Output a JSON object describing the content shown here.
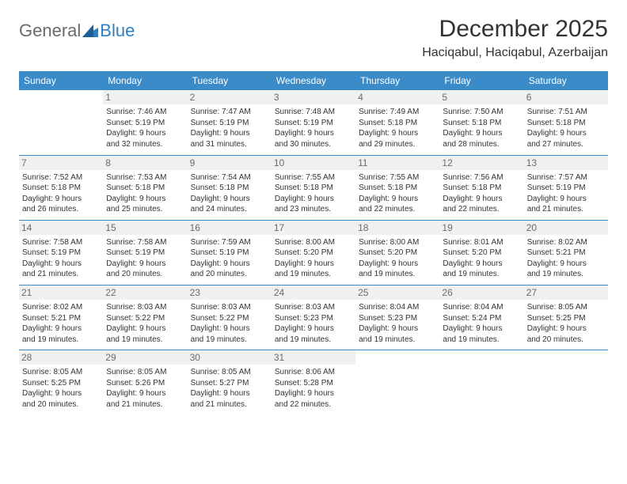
{
  "logo": {
    "text1": "General",
    "text2": "Blue"
  },
  "title": "December 2025",
  "location": "Haciqabul, Haciqabul, Azerbaijan",
  "colors": {
    "header_bg": "#3b8bc8",
    "header_fg": "#ffffff",
    "daynum_bg": "#f0f0f0",
    "daynum_fg": "#6b6b6b",
    "rule": "#3b8bc8",
    "logo_gray": "#6a6a6a",
    "logo_blue": "#2f7fc2"
  },
  "weekdays": [
    "Sunday",
    "Monday",
    "Tuesday",
    "Wednesday",
    "Thursday",
    "Friday",
    "Saturday"
  ],
  "weeks": [
    [
      null,
      {
        "n": "1",
        "sr": "Sunrise: 7:46 AM",
        "ss": "Sunset: 5:19 PM",
        "d1": "Daylight: 9 hours",
        "d2": "and 32 minutes."
      },
      {
        "n": "2",
        "sr": "Sunrise: 7:47 AM",
        "ss": "Sunset: 5:19 PM",
        "d1": "Daylight: 9 hours",
        "d2": "and 31 minutes."
      },
      {
        "n": "3",
        "sr": "Sunrise: 7:48 AM",
        "ss": "Sunset: 5:19 PM",
        "d1": "Daylight: 9 hours",
        "d2": "and 30 minutes."
      },
      {
        "n": "4",
        "sr": "Sunrise: 7:49 AM",
        "ss": "Sunset: 5:18 PM",
        "d1": "Daylight: 9 hours",
        "d2": "and 29 minutes."
      },
      {
        "n": "5",
        "sr": "Sunrise: 7:50 AM",
        "ss": "Sunset: 5:18 PM",
        "d1": "Daylight: 9 hours",
        "d2": "and 28 minutes."
      },
      {
        "n": "6",
        "sr": "Sunrise: 7:51 AM",
        "ss": "Sunset: 5:18 PM",
        "d1": "Daylight: 9 hours",
        "d2": "and 27 minutes."
      }
    ],
    [
      {
        "n": "7",
        "sr": "Sunrise: 7:52 AM",
        "ss": "Sunset: 5:18 PM",
        "d1": "Daylight: 9 hours",
        "d2": "and 26 minutes."
      },
      {
        "n": "8",
        "sr": "Sunrise: 7:53 AM",
        "ss": "Sunset: 5:18 PM",
        "d1": "Daylight: 9 hours",
        "d2": "and 25 minutes."
      },
      {
        "n": "9",
        "sr": "Sunrise: 7:54 AM",
        "ss": "Sunset: 5:18 PM",
        "d1": "Daylight: 9 hours",
        "d2": "and 24 minutes."
      },
      {
        "n": "10",
        "sr": "Sunrise: 7:55 AM",
        "ss": "Sunset: 5:18 PM",
        "d1": "Daylight: 9 hours",
        "d2": "and 23 minutes."
      },
      {
        "n": "11",
        "sr": "Sunrise: 7:55 AM",
        "ss": "Sunset: 5:18 PM",
        "d1": "Daylight: 9 hours",
        "d2": "and 22 minutes."
      },
      {
        "n": "12",
        "sr": "Sunrise: 7:56 AM",
        "ss": "Sunset: 5:18 PM",
        "d1": "Daylight: 9 hours",
        "d2": "and 22 minutes."
      },
      {
        "n": "13",
        "sr": "Sunrise: 7:57 AM",
        "ss": "Sunset: 5:19 PM",
        "d1": "Daylight: 9 hours",
        "d2": "and 21 minutes."
      }
    ],
    [
      {
        "n": "14",
        "sr": "Sunrise: 7:58 AM",
        "ss": "Sunset: 5:19 PM",
        "d1": "Daylight: 9 hours",
        "d2": "and 21 minutes."
      },
      {
        "n": "15",
        "sr": "Sunrise: 7:58 AM",
        "ss": "Sunset: 5:19 PM",
        "d1": "Daylight: 9 hours",
        "d2": "and 20 minutes."
      },
      {
        "n": "16",
        "sr": "Sunrise: 7:59 AM",
        "ss": "Sunset: 5:19 PM",
        "d1": "Daylight: 9 hours",
        "d2": "and 20 minutes."
      },
      {
        "n": "17",
        "sr": "Sunrise: 8:00 AM",
        "ss": "Sunset: 5:20 PM",
        "d1": "Daylight: 9 hours",
        "d2": "and 19 minutes."
      },
      {
        "n": "18",
        "sr": "Sunrise: 8:00 AM",
        "ss": "Sunset: 5:20 PM",
        "d1": "Daylight: 9 hours",
        "d2": "and 19 minutes."
      },
      {
        "n": "19",
        "sr": "Sunrise: 8:01 AM",
        "ss": "Sunset: 5:20 PM",
        "d1": "Daylight: 9 hours",
        "d2": "and 19 minutes."
      },
      {
        "n": "20",
        "sr": "Sunrise: 8:02 AM",
        "ss": "Sunset: 5:21 PM",
        "d1": "Daylight: 9 hours",
        "d2": "and 19 minutes."
      }
    ],
    [
      {
        "n": "21",
        "sr": "Sunrise: 8:02 AM",
        "ss": "Sunset: 5:21 PM",
        "d1": "Daylight: 9 hours",
        "d2": "and 19 minutes."
      },
      {
        "n": "22",
        "sr": "Sunrise: 8:03 AM",
        "ss": "Sunset: 5:22 PM",
        "d1": "Daylight: 9 hours",
        "d2": "and 19 minutes."
      },
      {
        "n": "23",
        "sr": "Sunrise: 8:03 AM",
        "ss": "Sunset: 5:22 PM",
        "d1": "Daylight: 9 hours",
        "d2": "and 19 minutes."
      },
      {
        "n": "24",
        "sr": "Sunrise: 8:03 AM",
        "ss": "Sunset: 5:23 PM",
        "d1": "Daylight: 9 hours",
        "d2": "and 19 minutes."
      },
      {
        "n": "25",
        "sr": "Sunrise: 8:04 AM",
        "ss": "Sunset: 5:23 PM",
        "d1": "Daylight: 9 hours",
        "d2": "and 19 minutes."
      },
      {
        "n": "26",
        "sr": "Sunrise: 8:04 AM",
        "ss": "Sunset: 5:24 PM",
        "d1": "Daylight: 9 hours",
        "d2": "and 19 minutes."
      },
      {
        "n": "27",
        "sr": "Sunrise: 8:05 AM",
        "ss": "Sunset: 5:25 PM",
        "d1": "Daylight: 9 hours",
        "d2": "and 20 minutes."
      }
    ],
    [
      {
        "n": "28",
        "sr": "Sunrise: 8:05 AM",
        "ss": "Sunset: 5:25 PM",
        "d1": "Daylight: 9 hours",
        "d2": "and 20 minutes."
      },
      {
        "n": "29",
        "sr": "Sunrise: 8:05 AM",
        "ss": "Sunset: 5:26 PM",
        "d1": "Daylight: 9 hours",
        "d2": "and 21 minutes."
      },
      {
        "n": "30",
        "sr": "Sunrise: 8:05 AM",
        "ss": "Sunset: 5:27 PM",
        "d1": "Daylight: 9 hours",
        "d2": "and 21 minutes."
      },
      {
        "n": "31",
        "sr": "Sunrise: 8:06 AM",
        "ss": "Sunset: 5:28 PM",
        "d1": "Daylight: 9 hours",
        "d2": "and 22 minutes."
      },
      null,
      null,
      null
    ]
  ]
}
